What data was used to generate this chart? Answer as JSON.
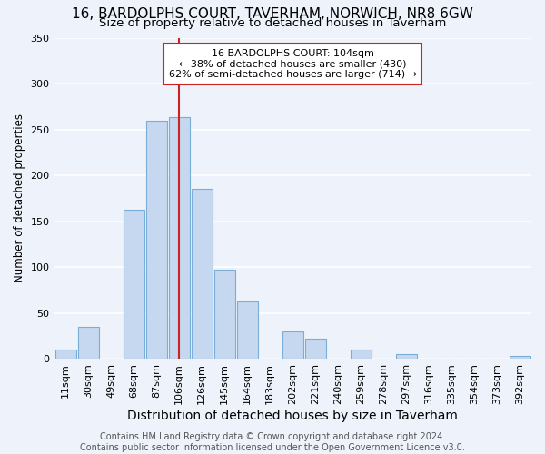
{
  "title": "16, BARDOLPHS COURT, TAVERHAM, NORWICH, NR8 6GW",
  "subtitle": "Size of property relative to detached houses in Taverham",
  "xlabel": "Distribution of detached houses by size in Taverham",
  "ylabel": "Number of detached properties",
  "bar_values": [
    10,
    35,
    0,
    163,
    260,
    263,
    185,
    97,
    63,
    0,
    30,
    22,
    0,
    10,
    0,
    5,
    0,
    0,
    0,
    0,
    3
  ],
  "categories": [
    "11sqm",
    "30sqm",
    "49sqm",
    "68sqm",
    "87sqm",
    "106sqm",
    "126sqm",
    "145sqm",
    "164sqm",
    "183sqm",
    "202sqm",
    "221sqm",
    "240sqm",
    "259sqm",
    "278sqm",
    "297sqm",
    "316sqm",
    "335sqm",
    "354sqm",
    "373sqm",
    "392sqm"
  ],
  "bar_color": "#c5d8f0",
  "bar_edge_color": "#7aaed6",
  "highlight_bar_index": 5,
  "highlight_line_color": "#cc2222",
  "annotation_text": "16 BARDOLPHS COURT: 104sqm\n← 38% of detached houses are smaller (430)\n62% of semi-detached houses are larger (714) →",
  "annotation_box_color": "white",
  "annotation_box_edge_color": "#cc2222",
  "ylim": [
    0,
    350
  ],
  "yticks": [
    0,
    50,
    100,
    150,
    200,
    250,
    300,
    350
  ],
  "footer_text": "Contains HM Land Registry data © Crown copyright and database right 2024.\nContains public sector information licensed under the Open Government Licence v3.0.",
  "background_color": "#eef2fa",
  "grid_color": "white",
  "title_fontsize": 11,
  "subtitle_fontsize": 9.5,
  "xlabel_fontsize": 10,
  "ylabel_fontsize": 8.5,
  "tick_fontsize": 8,
  "footer_fontsize": 7
}
